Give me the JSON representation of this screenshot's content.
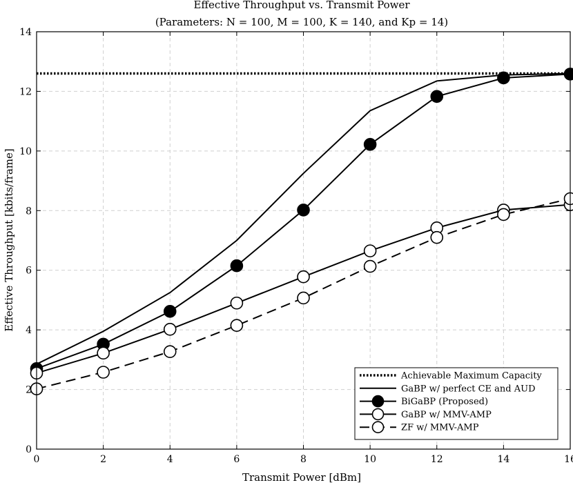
{
  "chart_data": {
    "type": "line",
    "title": "Effective Throughput vs. Transmit Power",
    "subtitle": "(Parameters: N = 100, M = 100, K = 140, and Kp = 14)",
    "xlabel": "Transmit Power [dBm]",
    "ylabel": "Effective Throughput [kbits/frame]",
    "xlim": [
      0,
      16
    ],
    "ylim": [
      0,
      14
    ],
    "xticks": [
      0,
      2,
      4,
      6,
      8,
      10,
      12,
      14,
      16
    ],
    "yticks": [
      0,
      2,
      4,
      6,
      8,
      10,
      12,
      14
    ],
    "grid": true,
    "legend_position": "bottom-right",
    "series": [
      {
        "name": "Achievable Maximum Capacity",
        "style": "dotted",
        "marker": "none",
        "color": "#000000",
        "x": [
          0,
          16
        ],
        "y": [
          12.6,
          12.6
        ]
      },
      {
        "name": "GaBP w/ perfect CE and AUD",
        "style": "solid",
        "marker": "none",
        "color": "#000000",
        "x": [
          0,
          2,
          4,
          6,
          8,
          10,
          12,
          14,
          16
        ],
        "y": [
          2.85,
          3.95,
          5.25,
          7.0,
          9.25,
          11.35,
          12.35,
          12.55,
          12.6
        ]
      },
      {
        "name": "BiGaBP (Proposed)",
        "style": "solid",
        "marker": "filled-circle",
        "color": "#000000",
        "x": [
          0,
          2,
          4,
          6,
          8,
          10,
          12,
          14,
          16
        ],
        "y": [
          2.7,
          3.52,
          4.62,
          6.15,
          8.02,
          10.22,
          11.83,
          12.45,
          12.58
        ]
      },
      {
        "name": "GaBP w/ MMV-AMP",
        "style": "solid",
        "marker": "open-circle",
        "color": "#000000",
        "x": [
          0,
          2,
          4,
          6,
          8,
          10,
          12,
          14,
          16
        ],
        "y": [
          2.55,
          3.22,
          4.02,
          4.9,
          5.78,
          6.65,
          7.42,
          8.02,
          8.2
        ]
      },
      {
        "name": "ZF w/ MMV-AMP",
        "style": "dashed",
        "marker": "open-circle",
        "color": "#000000",
        "x": [
          0,
          2,
          4,
          6,
          8,
          10,
          12,
          14,
          16
        ],
        "y": [
          2.02,
          2.58,
          3.27,
          4.15,
          5.07,
          6.13,
          7.1,
          7.87,
          8.4
        ]
      }
    ]
  }
}
